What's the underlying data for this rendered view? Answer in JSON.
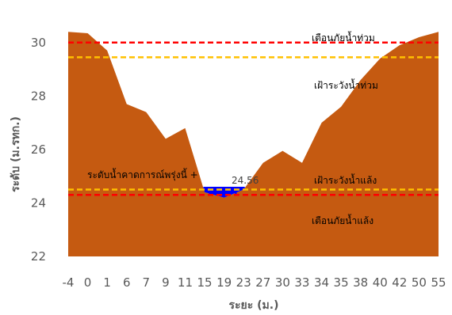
{
  "chart_data": {
    "type": "area",
    "xlabel": "ระยะ (ม.)",
    "ylabel": "ระดับ (ม.รทก.)",
    "ylim": [
      22,
      31
    ],
    "yticks": [
      22,
      24,
      26,
      28,
      30
    ],
    "categories": [
      "-4",
      "0",
      "1",
      "6",
      "7",
      "9",
      "11",
      "15",
      "19",
      "23",
      "27",
      "30",
      "33",
      "34",
      "35",
      "38",
      "40",
      "42",
      "50",
      "55"
    ],
    "series": [
      {
        "values": [
          30.4,
          30.35,
          29.7,
          27.7,
          27.4,
          26.4,
          26.8,
          24.4,
          24.2,
          24.5,
          25.5,
          25.95,
          25.5,
          27.0,
          27.6,
          28.6,
          29.4,
          29.9,
          30.2,
          30.4
        ]
      }
    ],
    "current_level": {
      "label": "ระดับน้ำคาดการณ์พรุ่งนี้ +",
      "value": "24.56",
      "level": 24.56
    },
    "threshold_lines": [
      {
        "label": "เตือนภัยน้ำท่วม",
        "value": 30.0,
        "color": "#ff0000"
      },
      {
        "label": "เฝ้าระวังน้ำท่วม",
        "value": 29.45,
        "color": "#ffc000"
      },
      {
        "label": "เฝ้าระวังน้ำแล้ง",
        "value": 24.5,
        "color": "#ffc000"
      },
      {
        "label": "เตือนภัยน้ำแล้ง",
        "value": 24.3,
        "color": "#ff0000"
      }
    ],
    "colors": {
      "area": "#c55a11",
      "water": "#0000ff",
      "background": "#ffffff"
    },
    "grid": false,
    "legend": "none"
  }
}
